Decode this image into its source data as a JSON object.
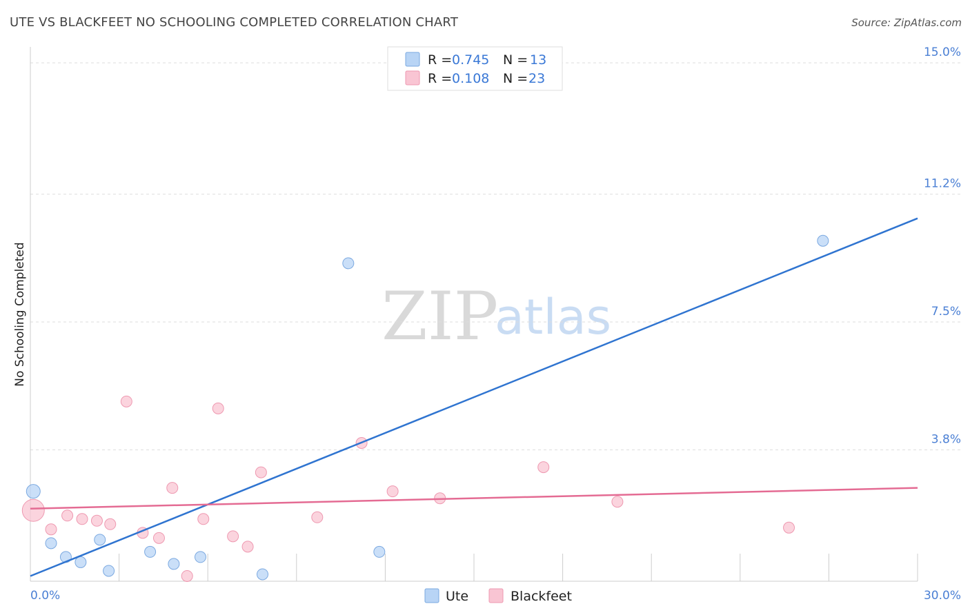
{
  "header": {
    "title": "UTE VS BLACKFEET NO SCHOOLING COMPLETED CORRELATION CHART",
    "source": "Source: ZipAtlas.com"
  },
  "watermark": {
    "zip": "ZIP",
    "atlas": "atlas"
  },
  "colors": {
    "ute_fill": "#b8d4f5",
    "ute_stroke": "#7aa8e0",
    "ute_line": "#2f74d0",
    "blackfeet_fill": "#f9c5d3",
    "blackfeet_stroke": "#ee98b0",
    "blackfeet_line": "#e46b93",
    "grid": "#dddddd",
    "tick_label": "#4a7fd4"
  },
  "chart_data": {
    "type": "scatter",
    "title": "UTE VS BLACKFEET NO SCHOOLING COMPLETED CORRELATION CHART",
    "xlabel": "",
    "ylabel": "No Schooling Completed",
    "xlim": [
      0,
      30
    ],
    "ylim": [
      0,
      15.8
    ],
    "x_tick_labels": [
      "0.0%",
      "30.0%"
    ],
    "y_ticks": [
      3.8,
      7.5,
      11.2,
      15.0
    ],
    "y_tick_labels": [
      "3.8%",
      "7.5%",
      "11.2%",
      "15.0%"
    ],
    "legend": {
      "position": "top-center",
      "entries": [
        {
          "r_label": "R =",
          "r_value": "0.745",
          "n_label": "N =",
          "n_value": "13"
        },
        {
          "r_label": "R =",
          "r_value": "0.108",
          "n_label": "N =",
          "n_value": "23"
        }
      ]
    },
    "series": [
      {
        "name": "Ute",
        "r": 0.745,
        "n": 13,
        "trend": {
          "x": [
            0,
            30
          ],
          "y": [
            0.15,
            10.5
          ]
        },
        "points": [
          {
            "x": 0.1,
            "y": 2.6,
            "size": "medium"
          },
          {
            "x": 0.7,
            "y": 1.1,
            "size": "small"
          },
          {
            "x": 1.2,
            "y": 0.7,
            "size": "small"
          },
          {
            "x": 1.7,
            "y": 0.55,
            "size": "small"
          },
          {
            "x": 2.35,
            "y": 1.2,
            "size": "small"
          },
          {
            "x": 2.65,
            "y": 0.3,
            "size": "small"
          },
          {
            "x": 4.05,
            "y": 0.85,
            "size": "small"
          },
          {
            "x": 4.85,
            "y": 0.5,
            "size": "small"
          },
          {
            "x": 5.75,
            "y": 0.7,
            "size": "small"
          },
          {
            "x": 7.85,
            "y": 0.2,
            "size": "small"
          },
          {
            "x": 10.75,
            "y": 9.2,
            "size": "small"
          },
          {
            "x": 11.8,
            "y": 0.85,
            "size": "small"
          },
          {
            "x": 26.8,
            "y": 9.85,
            "size": "small"
          }
        ]
      },
      {
        "name": "Blackfeet",
        "r": 0.108,
        "n": 23,
        "trend": {
          "x": [
            0,
            30
          ],
          "y": [
            2.1,
            2.7
          ]
        },
        "points": [
          {
            "x": 0.1,
            "y": 2.05,
            "size": "large"
          },
          {
            "x": 0.7,
            "y": 1.5,
            "size": "small"
          },
          {
            "x": 1.25,
            "y": 1.9,
            "size": "small"
          },
          {
            "x": 1.75,
            "y": 1.8,
            "size": "small"
          },
          {
            "x": 2.25,
            "y": 1.75,
            "size": "small"
          },
          {
            "x": 2.7,
            "y": 1.65,
            "size": "small"
          },
          {
            "x": 3.25,
            "y": 5.2,
            "size": "small"
          },
          {
            "x": 3.8,
            "y": 1.4,
            "size": "small"
          },
          {
            "x": 4.35,
            "y": 1.25,
            "size": "small"
          },
          {
            "x": 4.8,
            "y": 2.7,
            "size": "small"
          },
          {
            "x": 5.3,
            "y": 0.15,
            "size": "small"
          },
          {
            "x": 5.85,
            "y": 1.8,
            "size": "small"
          },
          {
            "x": 6.35,
            "y": 5.0,
            "size": "small"
          },
          {
            "x": 6.85,
            "y": 1.3,
            "size": "small"
          },
          {
            "x": 7.35,
            "y": 1.0,
            "size": "small"
          },
          {
            "x": 7.8,
            "y": 3.15,
            "size": "small"
          },
          {
            "x": 9.7,
            "y": 1.85,
            "size": "small"
          },
          {
            "x": 11.2,
            "y": 4.0,
            "size": "small"
          },
          {
            "x": 12.25,
            "y": 2.6,
            "size": "small"
          },
          {
            "x": 13.85,
            "y": 2.4,
            "size": "small"
          },
          {
            "x": 17.35,
            "y": 3.3,
            "size": "small"
          },
          {
            "x": 19.85,
            "y": 2.3,
            "size": "small"
          },
          {
            "x": 25.65,
            "y": 1.55,
            "size": "small"
          }
        ]
      }
    ]
  }
}
